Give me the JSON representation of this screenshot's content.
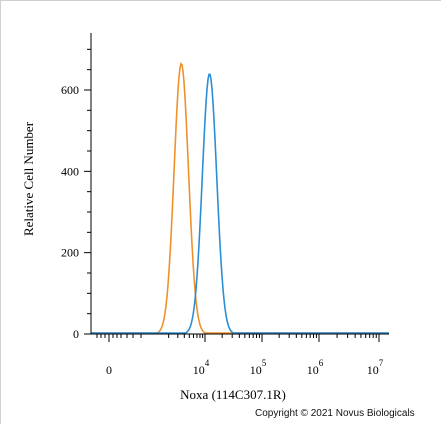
{
  "chart_data": {
    "type": "histogram",
    "title": "",
    "xlabel": "Noxa (114C307.1R)",
    "ylabel": "Relative Cell Number",
    "x_scale": "log",
    "x_ticks": [
      {
        "label": "0",
        "value": 0
      },
      {
        "base": "10",
        "exp": "4",
        "value": 10000
      },
      {
        "base": "10",
        "exp": "5",
        "value": 100000
      },
      {
        "base": "10",
        "exp": "6",
        "value": 1000000
      },
      {
        "base": "10",
        "exp": "7",
        "value": 10000000
      }
    ],
    "y_ticks": [
      0,
      200,
      400,
      600
    ],
    "ylim": [
      0,
      730
    ],
    "series": [
      {
        "color": "#f0922b",
        "peak_x": 3500,
        "peak_y": 665
      },
      {
        "color": "#2b8fd6",
        "peak_x": 12000,
        "peak_y": 640
      }
    ]
  },
  "copyright": "Copyright © 2021 Novus Biologicals"
}
